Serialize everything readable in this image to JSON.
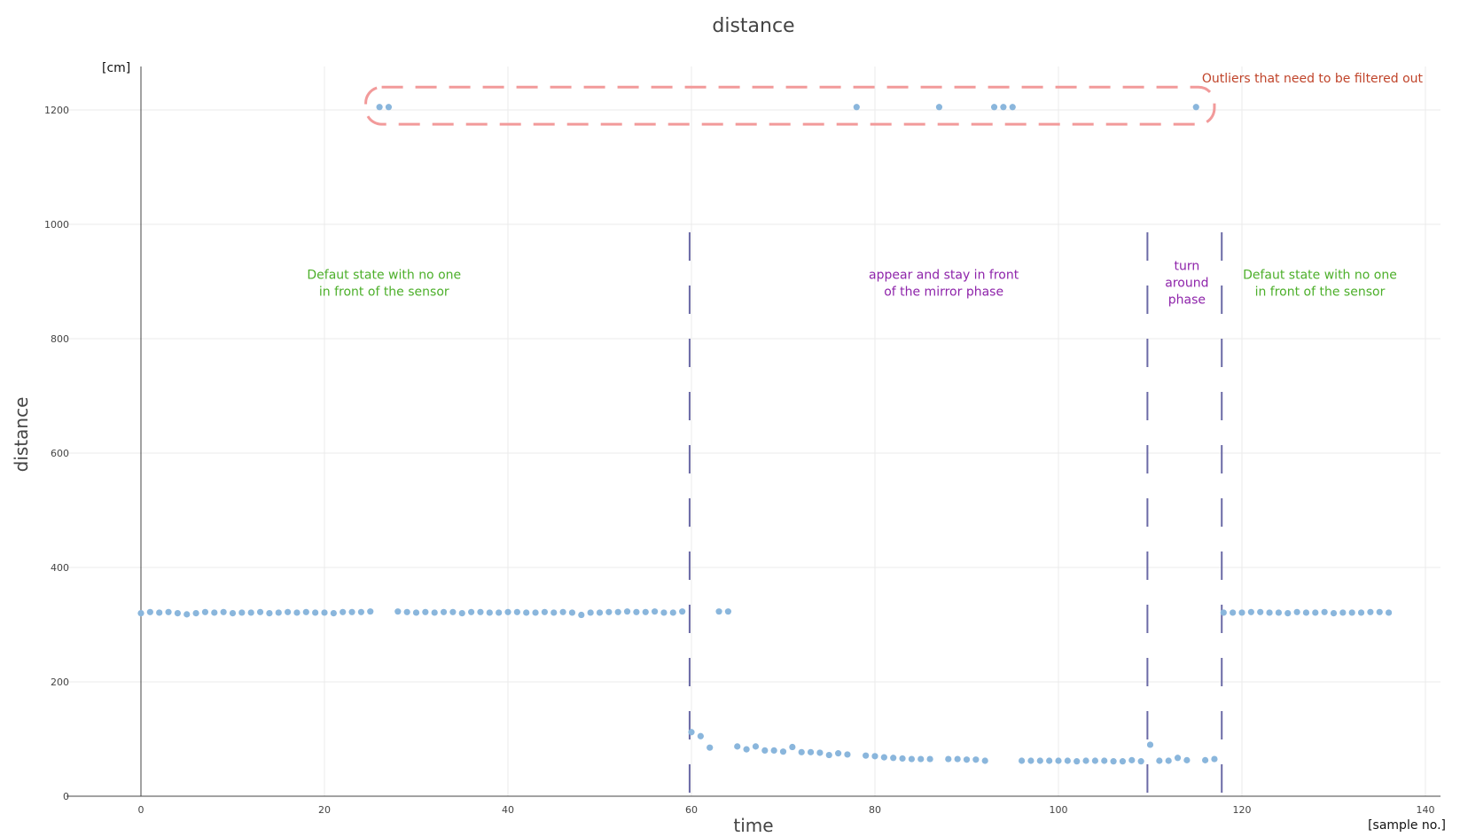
{
  "chart_data": {
    "type": "scatter",
    "title": "distance",
    "xlabel": "time",
    "ylabel": "distance",
    "x_unit": "[sample no.]",
    "y_unit": "[cm]",
    "xlim": [
      -8,
      142
    ],
    "ylim": [
      0,
      1280
    ],
    "x_ticks": [
      0,
      20,
      40,
      60,
      80,
      100,
      120,
      140
    ],
    "y_ticks": [
      0,
      200,
      400,
      600,
      800,
      1000,
      1200
    ],
    "grid": true,
    "marker_color": "#8ab6dc",
    "series": [
      {
        "points": [
          [
            0,
            320
          ],
          [
            1,
            322
          ],
          [
            2,
            321
          ],
          [
            3,
            322
          ],
          [
            4,
            320
          ],
          [
            5,
            318
          ],
          [
            6,
            320
          ],
          [
            7,
            322
          ],
          [
            8,
            321
          ],
          [
            9,
            322
          ],
          [
            10,
            320
          ],
          [
            11,
            321
          ],
          [
            12,
            321
          ],
          [
            13,
            322
          ],
          [
            14,
            320
          ],
          [
            15,
            321
          ],
          [
            16,
            322
          ],
          [
            17,
            321
          ],
          [
            18,
            322
          ],
          [
            19,
            321
          ],
          [
            20,
            321
          ],
          [
            21,
            320
          ],
          [
            22,
            322
          ],
          [
            23,
            322
          ],
          [
            24,
            322
          ],
          [
            25,
            323
          ],
          [
            26,
            1205
          ],
          [
            27,
            1205
          ],
          [
            28,
            323
          ],
          [
            29,
            322
          ],
          [
            30,
            321
          ],
          [
            31,
            322
          ],
          [
            32,
            321
          ],
          [
            33,
            322
          ],
          [
            34,
            322
          ],
          [
            35,
            320
          ],
          [
            36,
            322
          ],
          [
            37,
            322
          ],
          [
            38,
            321
          ],
          [
            39,
            321
          ],
          [
            40,
            322
          ],
          [
            41,
            322
          ],
          [
            42,
            321
          ],
          [
            43,
            321
          ],
          [
            44,
            322
          ],
          [
            45,
            321
          ],
          [
            46,
            322
          ],
          [
            47,
            321
          ],
          [
            48,
            317
          ],
          [
            49,
            321
          ],
          [
            50,
            321
          ],
          [
            51,
            322
          ],
          [
            52,
            322
          ],
          [
            53,
            323
          ],
          [
            54,
            322
          ],
          [
            55,
            322
          ],
          [
            56,
            323
          ],
          [
            57,
            321
          ],
          [
            58,
            321
          ],
          [
            59,
            323
          ],
          [
            60,
            112
          ],
          [
            61,
            105
          ],
          [
            62,
            85
          ],
          [
            63,
            323
          ],
          [
            64,
            323
          ],
          [
            65,
            87
          ],
          [
            66,
            82
          ],
          [
            67,
            87
          ],
          [
            68,
            80
          ],
          [
            69,
            80
          ],
          [
            70,
            78
          ],
          [
            71,
            86
          ],
          [
            72,
            77
          ],
          [
            73,
            77
          ],
          [
            74,
            76
          ],
          [
            75,
            72
          ],
          [
            76,
            75
          ],
          [
            77,
            73
          ],
          [
            78,
            1205
          ],
          [
            79,
            71
          ],
          [
            80,
            70
          ],
          [
            81,
            68
          ],
          [
            82,
            67
          ],
          [
            83,
            66
          ],
          [
            84,
            65
          ],
          [
            85,
            65
          ],
          [
            86,
            65
          ],
          [
            87,
            1205
          ],
          [
            88,
            65
          ],
          [
            89,
            65
          ],
          [
            90,
            64
          ],
          [
            91,
            64
          ],
          [
            92,
            62
          ],
          [
            93,
            1205
          ],
          [
            94,
            1205
          ],
          [
            95,
            1205
          ],
          [
            96,
            62
          ],
          [
            97,
            62
          ],
          [
            98,
            62
          ],
          [
            99,
            62
          ],
          [
            100,
            62
          ],
          [
            101,
            62
          ],
          [
            102,
            61
          ],
          [
            103,
            62
          ],
          [
            104,
            62
          ],
          [
            105,
            62
          ],
          [
            106,
            61
          ],
          [
            107,
            61
          ],
          [
            108,
            63
          ],
          [
            109,
            61
          ],
          [
            110,
            90
          ],
          [
            111,
            62
          ],
          [
            112,
            62
          ],
          [
            113,
            67
          ],
          [
            114,
            63
          ],
          [
            115,
            1205
          ],
          [
            116,
            63
          ],
          [
            117,
            65
          ],
          [
            118,
            321
          ],
          [
            119,
            321
          ],
          [
            120,
            321
          ],
          [
            121,
            322
          ],
          [
            122,
            322
          ],
          [
            123,
            321
          ],
          [
            124,
            321
          ],
          [
            125,
            320
          ],
          [
            126,
            322
          ],
          [
            127,
            321
          ],
          [
            128,
            321
          ],
          [
            129,
            322
          ],
          [
            130,
            320
          ],
          [
            131,
            321
          ],
          [
            132,
            321
          ],
          [
            133,
            321
          ],
          [
            134,
            322
          ],
          [
            135,
            322
          ],
          [
            136,
            321
          ]
        ]
      }
    ],
    "phase_boundaries_x": [
      59.8,
      109.7,
      117.8
    ],
    "phase_line_color": "#6b6aa6",
    "phase_labels": [
      {
        "lines": [
          "Defaut state with no one",
          "in front of the sensor"
        ],
        "x": 26.5,
        "y": 905,
        "color": "#4caf2a"
      },
      {
        "lines": [
          "appear and stay in front",
          "of the mirror phase"
        ],
        "x": 87.5,
        "y": 905,
        "color": "#8e24aa"
      },
      {
        "lines": [
          "turn",
          "around",
          "phase"
        ],
        "x": 114,
        "y": 920,
        "color": "#8e24aa"
      },
      {
        "lines": [
          "Defaut state with no one",
          "in front of the sensor"
        ],
        "x": 128.5,
        "y": 905,
        "color": "#4caf2a"
      }
    ],
    "outlier_box": {
      "x_range": [
        24.5,
        117
      ],
      "y_range": [
        1175,
        1240
      ],
      "color": "#f29a9a",
      "label": "Outliers that need to be filtered out",
      "label_color": "#c0442a"
    }
  }
}
